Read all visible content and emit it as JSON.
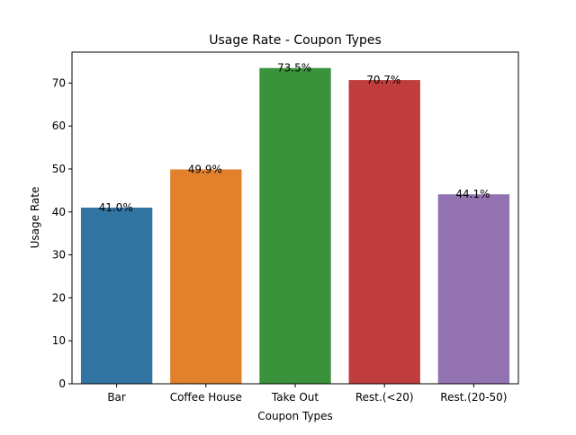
{
  "chart_data": {
    "type": "bar",
    "title": "Usage Rate - Coupon Types",
    "xlabel": "Coupon Types",
    "ylabel": "Usage Rate",
    "categories": [
      "Bar",
      "Coffee House",
      "Take Out",
      "Rest.(<20)",
      "Rest.(20-50)"
    ],
    "values": [
      41.0,
      49.9,
      73.5,
      70.7,
      44.1
    ],
    "data_labels": [
      "41.0%",
      "49.9%",
      "73.5%",
      "70.7%",
      "44.1%"
    ],
    "colors": [
      "#3274a1",
      "#e1812c",
      "#3a923a",
      "#c03d3e",
      "#9372b2"
    ],
    "ylim": [
      0,
      77.2
    ],
    "yticks": [
      0,
      10,
      20,
      30,
      40,
      50,
      60,
      70
    ],
    "grid": false,
    "legend": "none"
  }
}
